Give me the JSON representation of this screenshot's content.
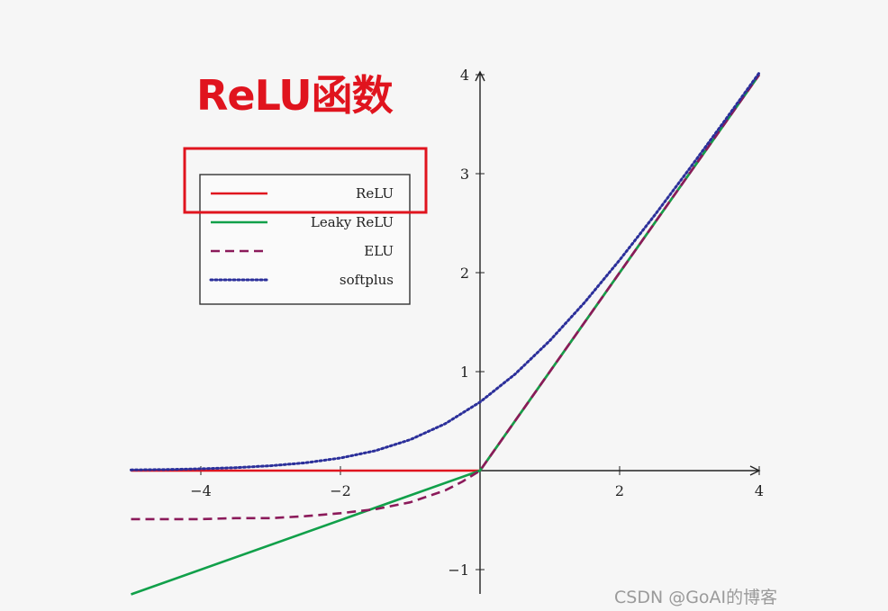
{
  "title": "ReLU函数",
  "watermark": "CSDN @GoAI的博客",
  "colors": {
    "relu": "#e0141e",
    "leaky_relu": "#11a04a",
    "elu": "#8b1a5a",
    "softplus": "#2b2f9a",
    "highlight_box": "#e0141e",
    "title": "#e0141e"
  },
  "chart_data": {
    "type": "line",
    "title": "",
    "xlabel": "",
    "ylabel": "",
    "xlim": [
      -5,
      4
    ],
    "ylim": [
      -1.25,
      4
    ],
    "x_ticks": [
      -4,
      -2,
      2,
      4
    ],
    "x_tick_labels": [
      "−4",
      "−2",
      "2",
      "4"
    ],
    "y_ticks": [
      -1,
      1,
      2,
      3,
      4
    ],
    "y_tick_labels": [
      "−1",
      "1",
      "2",
      "3",
      "4"
    ],
    "grid": false,
    "legend_position": "top-left",
    "series": [
      {
        "name": "ReLU",
        "style": "solid",
        "x": [
          -5,
          0,
          4
        ],
        "y": [
          0,
          0,
          4
        ]
      },
      {
        "name": "Leaky ReLU",
        "style": "solid",
        "x": [
          -5,
          0,
          4
        ],
        "y": [
          -1.25,
          0,
          4
        ]
      },
      {
        "name": "ELU",
        "style": "dashed",
        "x": [
          -5,
          -4.5,
          -4,
          -3.5,
          -3,
          -2.5,
          -2,
          -1.5,
          -1,
          -0.75,
          -0.5,
          -0.25,
          0,
          4
        ],
        "y": [
          -0.49,
          -0.49,
          -0.49,
          -0.48,
          -0.48,
          -0.46,
          -0.43,
          -0.39,
          -0.32,
          -0.26,
          -0.2,
          -0.11,
          0,
          4
        ]
      },
      {
        "name": "softplus",
        "style": "dotted",
        "x": [
          -5,
          -4.5,
          -4,
          -3.5,
          -3,
          -2.5,
          -2,
          -1.5,
          -1,
          -0.5,
          0,
          0.5,
          1,
          1.5,
          2,
          2.5,
          3,
          3.5,
          4
        ],
        "y": [
          0.007,
          0.011,
          0.018,
          0.03,
          0.049,
          0.079,
          0.127,
          0.201,
          0.313,
          0.474,
          0.693,
          0.974,
          1.313,
          1.701,
          2.127,
          2.579,
          3.049,
          3.53,
          4.018
        ]
      }
    ]
  }
}
